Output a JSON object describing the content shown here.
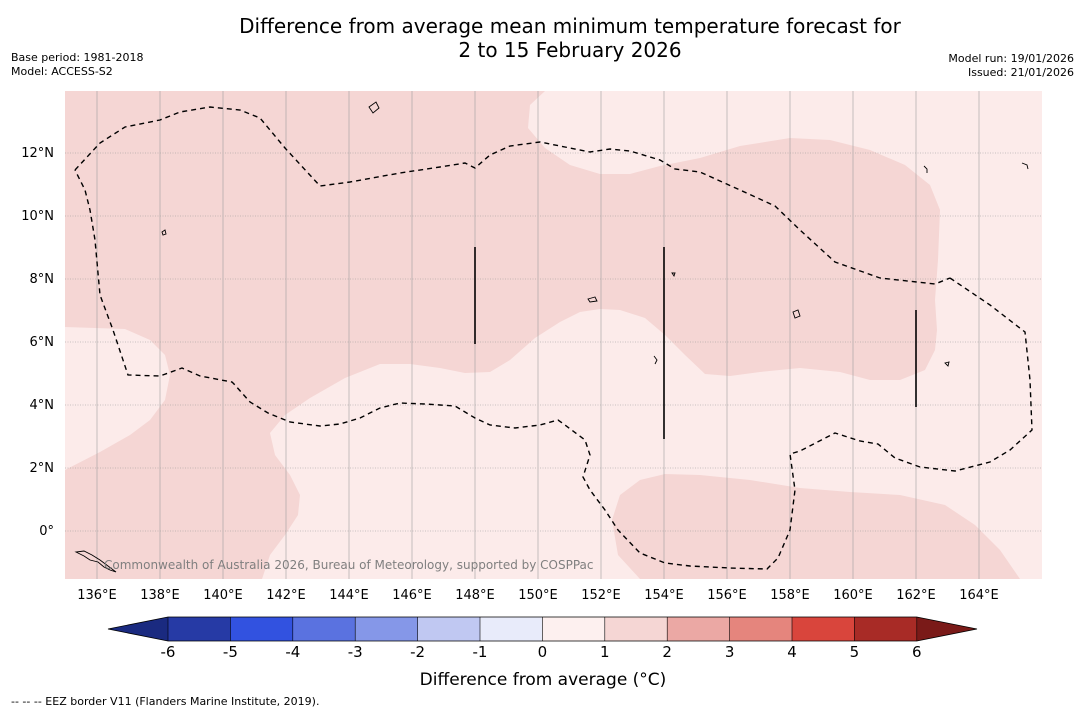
{
  "title_line1": "Difference from average mean minimum temperature forecast for",
  "title_line2": "2 to 15 February 2026",
  "meta_left": {
    "base_period": "Base period: 1981-2018",
    "model": "Model: ACCESS-S2"
  },
  "meta_right": {
    "model_run": "Model run: 19/01/2026",
    "issued": "Issued: 21/01/2026"
  },
  "map": {
    "region": "Western Pacific",
    "latitudes": [
      "12°N",
      "10°N",
      "8°N",
      "6°N",
      "4°N",
      "2°N",
      "0°"
    ],
    "longitudes": [
      "136°E",
      "138°E",
      "140°E",
      "142°E",
      "144°E",
      "146°E",
      "148°E",
      "150°E",
      "152°E",
      "154°E",
      "156°E",
      "158°E",
      "160°E",
      "162°E",
      "164°E"
    ],
    "credit": "Commonwealth of Australia 2026, Bureau of Meteorology, supported by COSPPac",
    "fill_colors": {
      "band_1_2": "#f5d6d4",
      "band_0_1": "#fcebea"
    },
    "eez_color": "#000000"
  },
  "colorbar": {
    "ticks": [
      "-6",
      "-5",
      "-4",
      "-3",
      "-2",
      "-1",
      "0",
      "1",
      "2",
      "3",
      "4",
      "5",
      "6"
    ],
    "colors": [
      "#263aa5",
      "#3252e0",
      "#5a72e0",
      "#8597e8",
      "#c0c8f2",
      "#e8ebfa",
      "#fdf0ef",
      "#f5d6d4",
      "#eba8a4",
      "#e5857d",
      "#d9453c",
      "#a82b26"
    ],
    "low_extend_color": "#1a2a80",
    "high_extend_color": "#7a1a18",
    "label": "Difference from average (°C)"
  },
  "footer": "-- -- -- EEZ border V11 (Flanders Marine Institute, 2019)."
}
